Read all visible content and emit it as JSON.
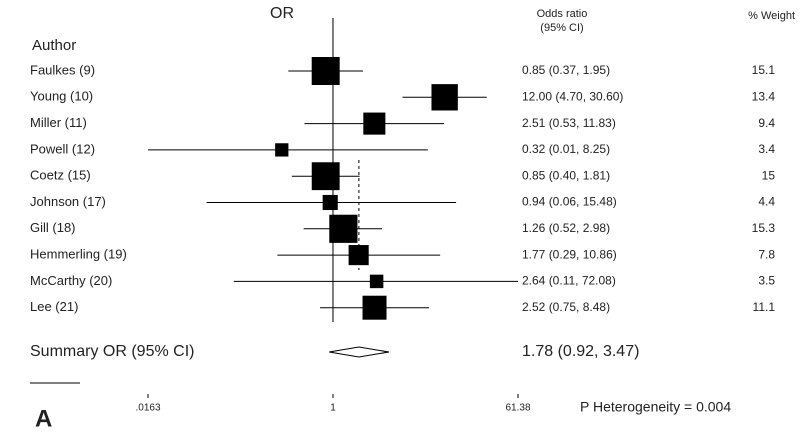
{
  "chart_data": {
    "type": "forest",
    "title": "OR",
    "author_header": "Author",
    "or_header": [
      "Odds ratio",
      "(95% CI)"
    ],
    "weight_header": "% Weight",
    "categories": [
      "Faulkes (9)",
      "Young (10)",
      "Miller (11)",
      "Powell (12)",
      "Coetz (15)",
      "Johnson (17)",
      "Gill (18)",
      "Hemmerling (19)",
      "McCarthy (20)",
      "Lee (21)"
    ],
    "values": [
      0.85,
      12.0,
      2.51,
      0.32,
      0.85,
      0.94,
      1.26,
      1.77,
      2.64,
      2.52
    ],
    "lower": [
      0.37,
      4.7,
      0.53,
      0.01,
      0.4,
      0.06,
      0.52,
      0.29,
      0.11,
      0.75
    ],
    "upper": [
      1.95,
      30.6,
      11.83,
      8.25,
      1.81,
      15.48,
      2.98,
      10.86,
      72.08,
      8.48
    ],
    "value_labels": [
      "0.85 (0.37, 1.95)",
      "12.00 (4.70, 30.60)",
      "2.51 (0.53, 11.83)",
      "0.32 (0.01, 8.25)",
      "0.85 (0.40, 1.81)",
      "0.94 (0.06, 15.48)",
      "1.26 (0.52, 2.98)",
      "1.77 (0.29, 10.86)",
      "2.64 (0.11, 72.08)",
      "2.52 (0.75, 8.48)"
    ],
    "weights": [
      15.1,
      13.4,
      9.4,
      3.4,
      15.0,
      4.4,
      15.3,
      7.8,
      3.5,
      11.1
    ],
    "summary": {
      "label": "Summary OR (95% CI)",
      "value": 1.78,
      "lower": 0.92,
      "upper": 3.47,
      "value_label": "1.78 (0.92, 3.47)"
    },
    "annotation": "P Heterogeneity = 0.004",
    "panel_label": "A",
    "color": "#000000",
    "log_x": true,
    "xlim": [
      0.0163,
      61.38
    ],
    "xticks": [
      {
        "value": 0.0163,
        "label": ".0163"
      },
      1,
      61.38
    ]
  }
}
